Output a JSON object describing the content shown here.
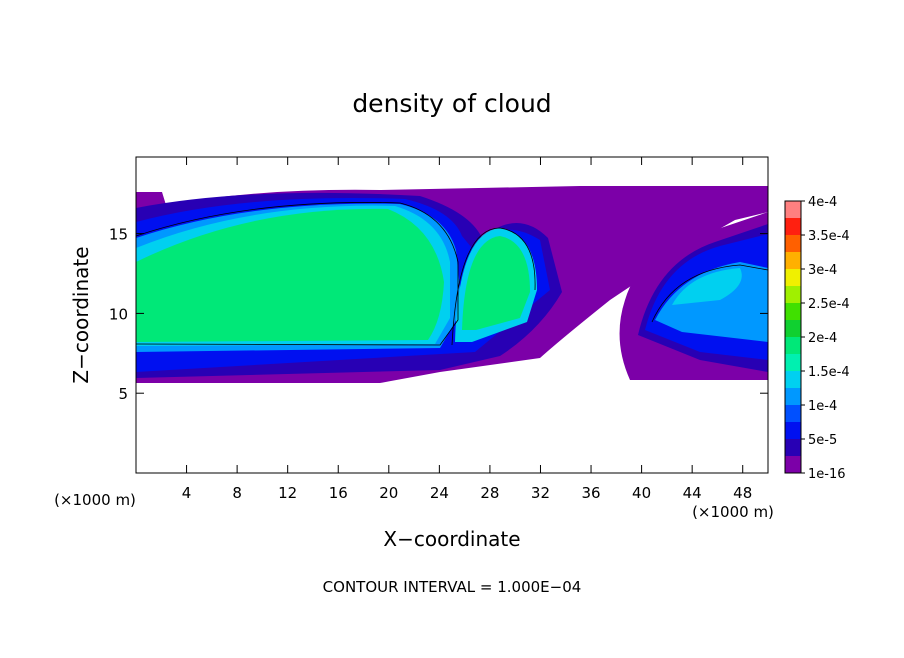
{
  "chart_data": {
    "type": "contour",
    "title": "density of cloud",
    "xlabel": "X−coordinate",
    "ylabel": "Z−coordinate",
    "x_unit_left": "(×1000 m)",
    "x_unit_right": "(×1000 m)",
    "annotation": "CONTOUR INTERVAL = 1.000E−04",
    "xlim": [
      0,
      50
    ],
    "ylim": [
      0,
      19.8
    ],
    "xticks": [
      4,
      8,
      12,
      16,
      20,
      24,
      28,
      32,
      36,
      40,
      44,
      48
    ],
    "yticks": [
      5,
      10,
      15
    ],
    "clim": [
      0,
      0.0004
    ],
    "colorbar_ticks": [
      {
        "value": 1e-16,
        "label": "1e-16"
      },
      {
        "value": 5e-05,
        "label": "5e-5"
      },
      {
        "value": 0.0001,
        "label": "1e-4"
      },
      {
        "value": 0.00015,
        "label": "1.5e-4"
      },
      {
        "value": 0.0002,
        "label": "2e-4"
      },
      {
        "value": 0.00025,
        "label": "2.5e-4"
      },
      {
        "value": 0.0003,
        "label": "3e-4"
      },
      {
        "value": 0.00035,
        "label": "3.5e-4"
      },
      {
        "value": 0.0004,
        "label": "4e-4"
      }
    ],
    "colors": [
      "#7c00a8",
      "#2800b4",
      "#0010f0",
      "#0050ff",
      "#0098ff",
      "#00d0f0",
      "#00f0b0",
      "#00e878",
      "#10d030",
      "#40e000",
      "#a0f000",
      "#f0f000",
      "#ffb000",
      "#ff6000",
      "#ff2010",
      "#ff8080"
    ]
  }
}
